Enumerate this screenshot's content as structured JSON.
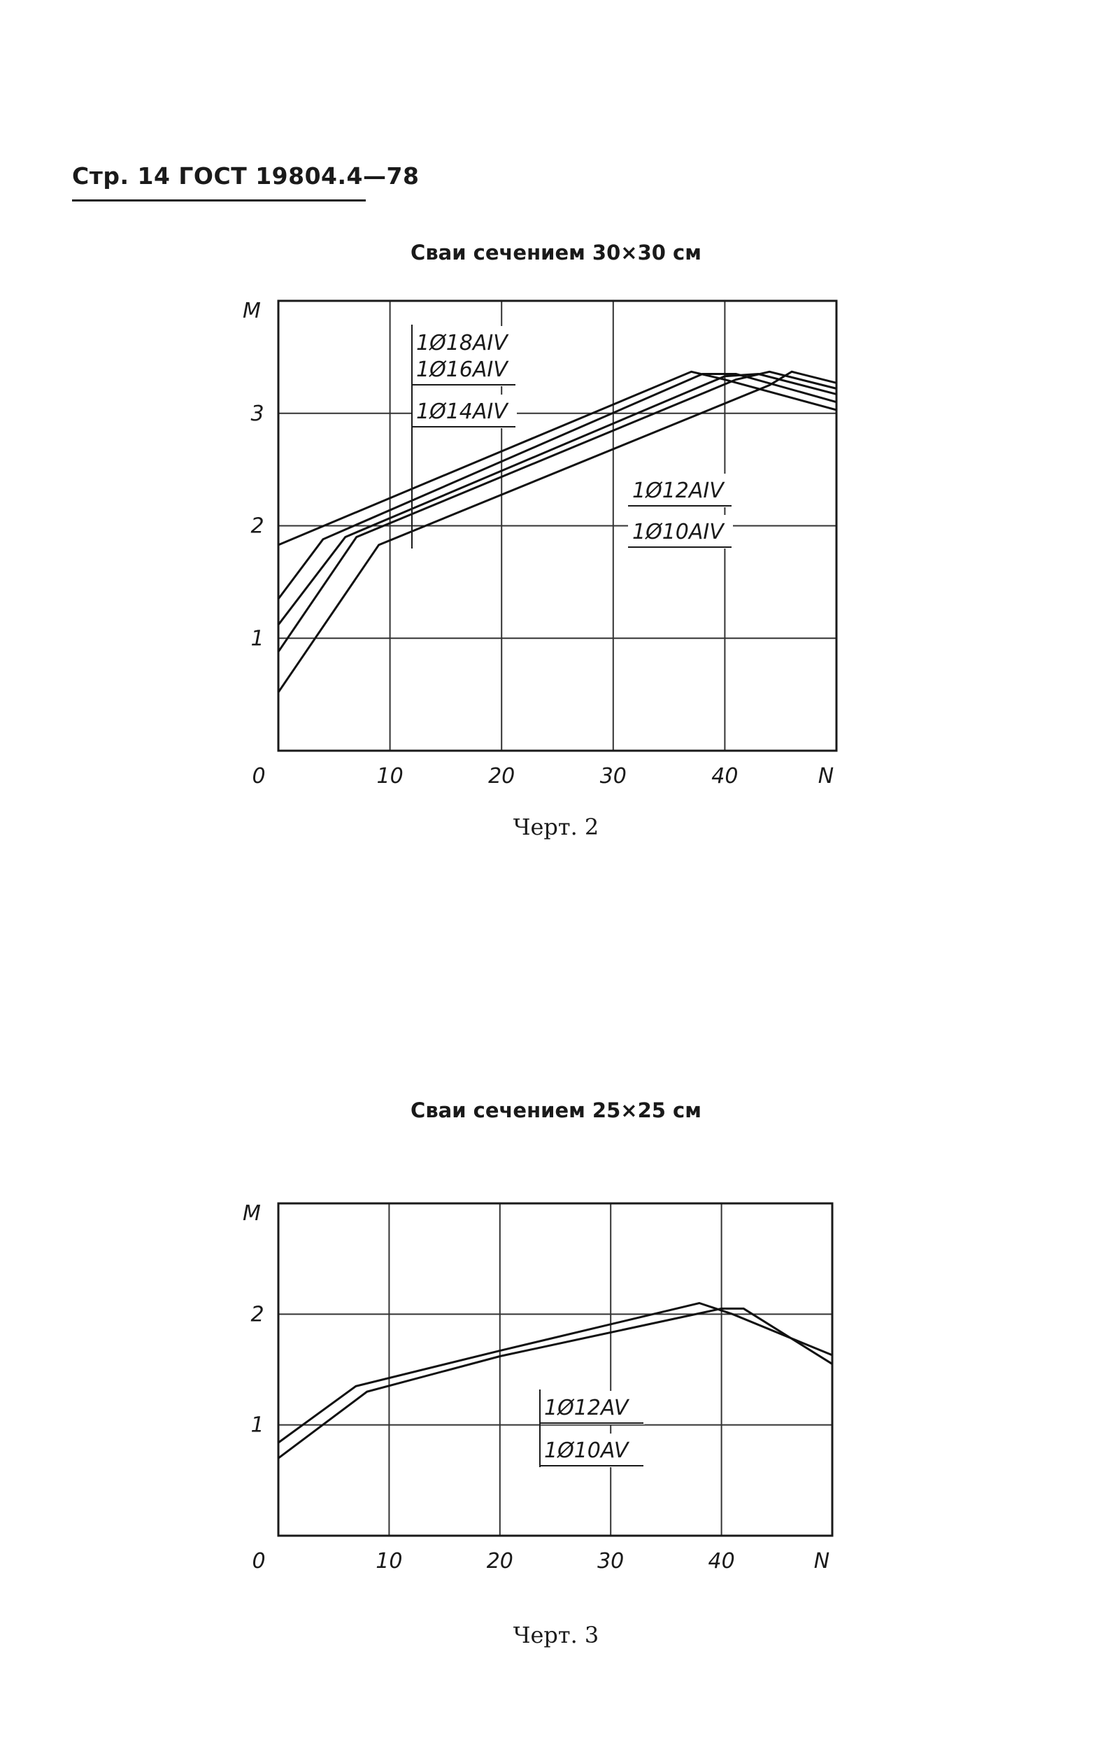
{
  "header": {
    "text": "Стр. 14 ГОСТ 19804.4—78"
  },
  "charts": [
    {
      "title": "Сваи сечением 30×30 см",
      "caption": "Черт. 2",
      "ylabel": "M",
      "xlabel": "N",
      "chart_data": {
        "type": "line",
        "title": "Сваи сечением 30×30 см",
        "xlabel": "N",
        "ylabel": "M",
        "xlim": [
          0,
          50
        ],
        "ylim": [
          0,
          4
        ],
        "x_ticks": [
          "0",
          "10",
          "20",
          "30",
          "40"
        ],
        "y_ticks": [
          "1",
          "2",
          "3"
        ],
        "grid": true,
        "series": [
          {
            "name": "1Ø18AIV",
            "points": [
              [
                0,
                1.83
              ],
              [
                37,
                3.37
              ],
              [
                40,
                3.3
              ],
              [
                50,
                3.03
              ]
            ]
          },
          {
            "name": "1Ø16AIV",
            "points": [
              [
                0,
                1.35
              ],
              [
                4,
                1.88
              ],
              [
                38,
                3.35
              ],
              [
                41,
                3.35
              ],
              [
                50,
                3.1
              ]
            ]
          },
          {
            "name": "1Ø14AIV",
            "points": [
              [
                0,
                1.12
              ],
              [
                6,
                1.9
              ],
              [
                40,
                3.33
              ],
              [
                43,
                3.35
              ],
              [
                50,
                3.17
              ]
            ]
          },
          {
            "name": "1Ø12AIV",
            "points": [
              [
                0,
                0.88
              ],
              [
                7,
                1.9
              ],
              [
                41,
                3.3
              ],
              [
                44,
                3.37
              ],
              [
                50,
                3.22
              ]
            ]
          },
          {
            "name": "1Ø10AIV",
            "points": [
              [
                0,
                0.52
              ],
              [
                9,
                1.83
              ],
              [
                44,
                3.25
              ],
              [
                46,
                3.37
              ],
              [
                50,
                3.27
              ]
            ]
          }
        ]
      }
    },
    {
      "title": "Сваи сечением 25×25 см",
      "caption": "Черт. 3",
      "ylabel": "M",
      "xlabel": "N",
      "chart_data": {
        "type": "line",
        "title": "Сваи сечением 25×25 см",
        "xlabel": "N",
        "ylabel": "M",
        "xlim": [
          0,
          50
        ],
        "ylim": [
          0,
          3
        ],
        "x_ticks": [
          "0",
          "10",
          "20",
          "30",
          "40"
        ],
        "y_ticks": [
          "1",
          "2"
        ],
        "grid": true,
        "series": [
          {
            "name": "1Ø12AV",
            "points": [
              [
                0,
                0.84
              ],
              [
                7,
                1.35
              ],
              [
                20,
                1.67
              ],
              [
                38,
                2.1
              ],
              [
                41,
                2.0
              ],
              [
                50,
                1.63
              ]
            ]
          },
          {
            "name": "1Ø10AV",
            "points": [
              [
                0,
                0.7
              ],
              [
                8,
                1.3
              ],
              [
                20,
                1.62
              ],
              [
                40,
                2.05
              ],
              [
                42,
                2.05
              ],
              [
                50,
                1.55
              ]
            ]
          }
        ]
      }
    }
  ]
}
